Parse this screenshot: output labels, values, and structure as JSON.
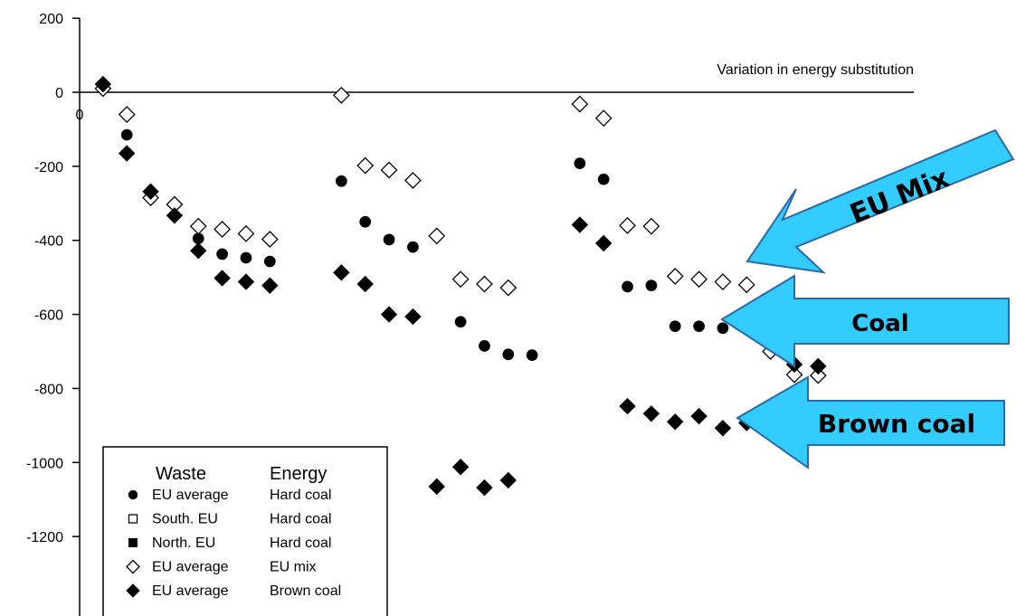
{
  "chart_data": {
    "type": "scatter",
    "xlabel": "Variation in energy substitution",
    "ylabel": "",
    "ylim": [
      -1200,
      200
    ],
    "yticks": [
      "200",
      "0",
      "-200",
      "-400",
      "-600",
      "-800",
      "-1000",
      "-1200"
    ],
    "yticks_values": [
      200,
      0,
      -200,
      -400,
      -600,
      -800,
      -1000,
      -1200
    ],
    "x_origin_label": "0",
    "series": [
      {
        "name": "EU average / Hard coal",
        "marker": "circle",
        "fill": "#000000",
        "points": [
          [
            1,
            20
          ],
          [
            2,
            -115
          ],
          [
            5,
            -395
          ],
          [
            6,
            -437
          ],
          [
            7,
            -447
          ],
          [
            8,
            -457
          ],
          [
            11,
            -240
          ],
          [
            12,
            -350
          ],
          [
            13,
            -398
          ],
          [
            14,
            -418
          ],
          [
            16,
            -620
          ],
          [
            17,
            -685
          ],
          [
            18,
            -708
          ],
          [
            19,
            -710
          ],
          [
            21,
            -192
          ],
          [
            22,
            -235
          ],
          [
            23,
            -525
          ],
          [
            24,
            -522
          ],
          [
            25,
            -632
          ],
          [
            26,
            -632
          ],
          [
            27,
            -637
          ],
          [
            28,
            -637
          ]
        ]
      },
      {
        "name": "EU average / EU mix",
        "marker": "diamond-open",
        "fill": "#ffffff",
        "points": [
          [
            1,
            10
          ],
          [
            2,
            -60
          ],
          [
            3,
            -285
          ],
          [
            4,
            -303
          ],
          [
            5,
            -362
          ],
          [
            6,
            -370
          ],
          [
            7,
            -382
          ],
          [
            8,
            -397
          ],
          [
            11,
            -8
          ],
          [
            12,
            -198
          ],
          [
            13,
            -210
          ],
          [
            14,
            -238
          ],
          [
            15,
            -388
          ],
          [
            16,
            -505
          ],
          [
            17,
            -518
          ],
          [
            18,
            -528
          ],
          [
            21,
            -32
          ],
          [
            22,
            -70
          ],
          [
            23,
            -360
          ],
          [
            24,
            -362
          ],
          [
            25,
            -497
          ],
          [
            26,
            -505
          ],
          [
            27,
            -512
          ],
          [
            28,
            -520
          ],
          [
            29,
            -700
          ],
          [
            30,
            -763
          ],
          [
            31,
            -765
          ]
        ]
      },
      {
        "name": "EU average / Brown coal",
        "marker": "diamond",
        "fill": "#000000",
        "points": [
          [
            1,
            22
          ],
          [
            2,
            -165
          ],
          [
            3,
            -268
          ],
          [
            4,
            -333
          ],
          [
            5,
            -428
          ],
          [
            6,
            -502
          ],
          [
            7,
            -512
          ],
          [
            8,
            -522
          ],
          [
            11,
            -487
          ],
          [
            12,
            -518
          ],
          [
            13,
            -600
          ],
          [
            14,
            -606
          ],
          [
            21,
            -358
          ],
          [
            22,
            -408
          ],
          [
            23,
            -848
          ],
          [
            24,
            -868
          ],
          [
            25,
            -890
          ],
          [
            26,
            -875
          ],
          [
            27,
            -907
          ],
          [
            28,
            -893
          ],
          [
            29,
            -660
          ],
          [
            30,
            -735
          ],
          [
            31,
            -740
          ],
          [
            15,
            -1065
          ],
          [
            16,
            -1012
          ],
          [
            17,
            -1068
          ],
          [
            18,
            -1048
          ]
        ]
      }
    ],
    "legend": {
      "position": "bottom-left",
      "header_waste": "Waste",
      "header_energy": "Energy",
      "rows": [
        {
          "symbol": "filled-circle",
          "waste": "EU average",
          "energy": "Hard coal"
        },
        {
          "symbol": "open-square",
          "waste": "South. EU",
          "energy": "Hard coal"
        },
        {
          "symbol": "filled-square",
          "waste": "North. EU",
          "energy": "Hard coal"
        },
        {
          "symbol": "open-diamond",
          "waste": "EU average",
          "energy": "EU mix"
        },
        {
          "symbol": "filled-diamond",
          "waste": "EU average",
          "energy": "Brown coal"
        }
      ]
    },
    "annotations": [
      {
        "text": "EU Mix",
        "points_to": "EU average / EU mix"
      },
      {
        "text": "Coal",
        "points_to": "EU average / Hard coal"
      },
      {
        "text": "Brown coal",
        "points_to": "EU average / Brown coal"
      }
    ],
    "colors": {
      "arrow_fill": "#33ccff",
      "arrow_stroke": "#2a6aa8"
    }
  }
}
